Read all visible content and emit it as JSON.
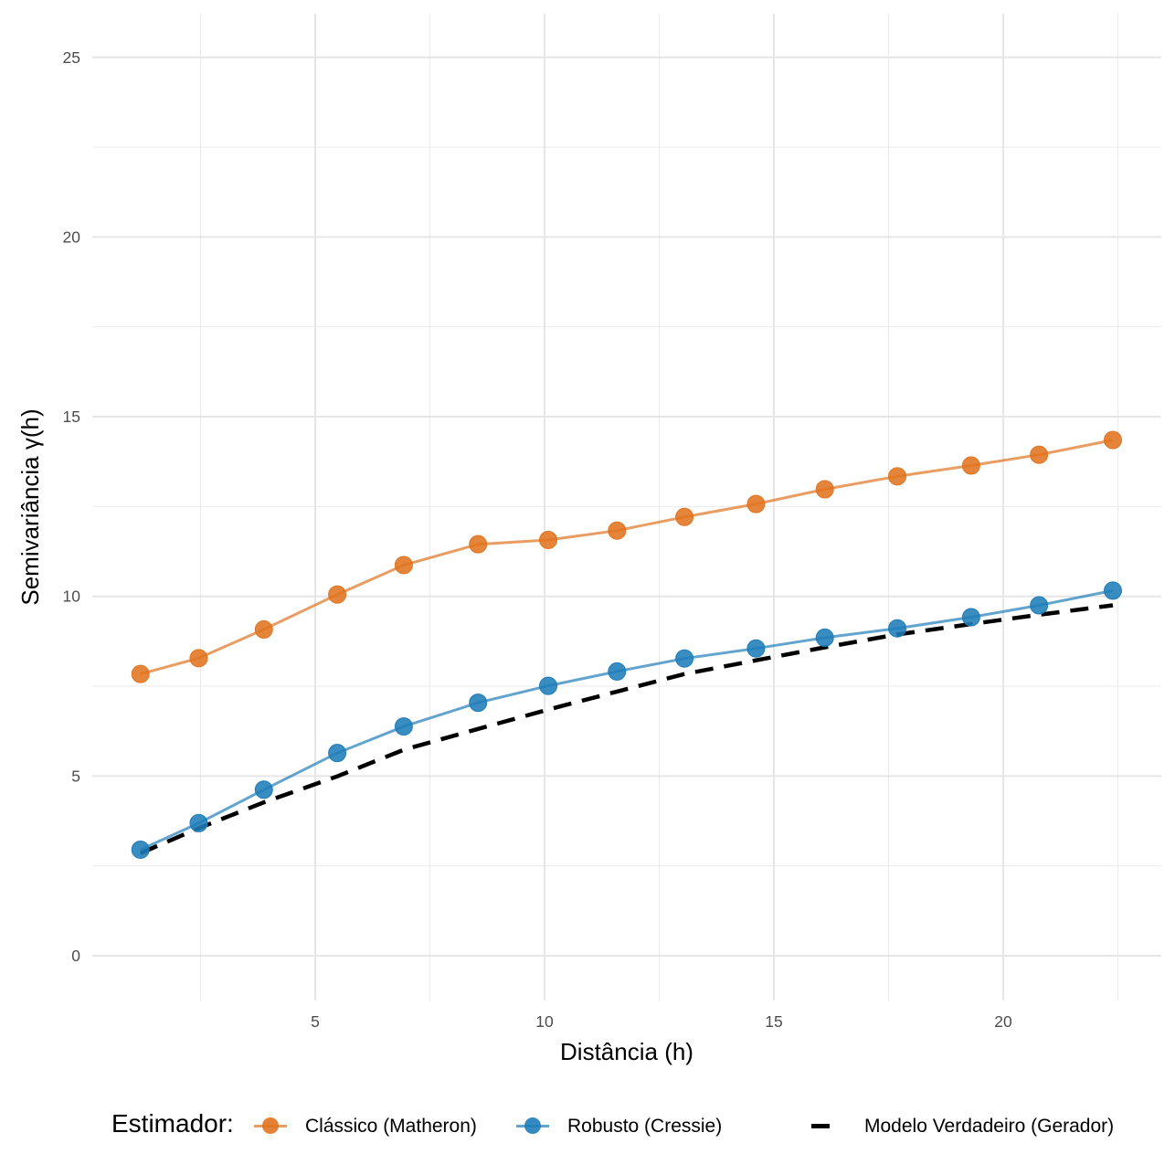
{
  "chart_data": {
    "type": "line",
    "title": "",
    "xlabel": "Distância (h)",
    "ylabel": "Semivariância γ(h)",
    "xlim": [
      0.1,
      23.5
    ],
    "ylim": [
      -1.25,
      26.25
    ],
    "x_ticks": [
      5,
      10,
      15,
      20
    ],
    "x_tick_labels": [
      "5",
      "10",
      "15",
      "20"
    ],
    "x_minor_ticks": [
      2.5,
      7.5,
      12.5,
      17.5,
      22.5
    ],
    "y_ticks": [
      0,
      5,
      10,
      15,
      20,
      25
    ],
    "y_tick_labels": [
      "0",
      "5",
      "10",
      "15",
      "20",
      "25"
    ],
    "y_minor_ticks": [
      2.5,
      7.5,
      12.5,
      17.5,
      22.5
    ],
    "grid": true,
    "legend_position": "bottom",
    "legend_title": "Estimador:",
    "x": [
      1.19,
      2.46,
      3.88,
      5.48,
      6.93,
      8.55,
      10.08,
      11.58,
      13.05,
      14.61,
      16.11,
      17.69,
      19.3,
      20.78,
      22.39
    ],
    "series": [
      {
        "name": "Clássico (Matheron)",
        "color": "#E07420",
        "style": "line+points",
        "values": [
          7.84,
          8.28,
          9.08,
          10.05,
          10.87,
          11.45,
          11.57,
          11.83,
          12.21,
          12.57,
          12.98,
          13.34,
          13.64,
          13.94,
          14.35
        ]
      },
      {
        "name": "Robusto (Cressie)",
        "color": "#1F7DB8",
        "style": "line+points",
        "values": [
          2.95,
          3.69,
          4.62,
          5.64,
          6.38,
          7.04,
          7.51,
          7.91,
          8.27,
          8.55,
          8.85,
          9.11,
          9.42,
          9.75,
          10.16
        ]
      },
      {
        "name": "Modelo Verdadeiro (Gerador)",
        "color": "#000000",
        "style": "dashed",
        "values": [
          2.85,
          3.55,
          4.27,
          4.99,
          5.73,
          6.31,
          6.85,
          7.35,
          7.84,
          8.22,
          8.58,
          8.94,
          9.23,
          9.49,
          9.75
        ]
      }
    ]
  }
}
